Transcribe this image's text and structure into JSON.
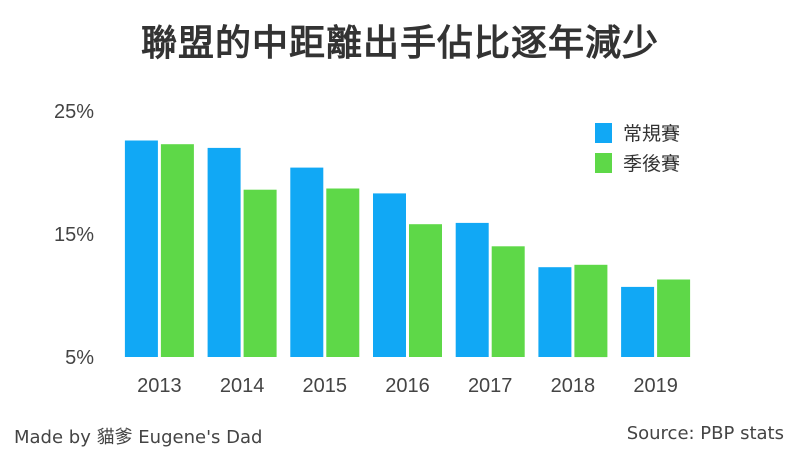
{
  "chart_data": {
    "type": "bar",
    "title": "聯盟的中距離出手佔比逐年減少",
    "categories": [
      "2013",
      "2014",
      "2015",
      "2016",
      "2017",
      "2018",
      "2019"
    ],
    "series": [
      {
        "name": "常規賽",
        "color": "#11A8F5",
        "values": [
          22.6,
          22.0,
          20.4,
          18.3,
          15.9,
          12.3,
          10.7
        ]
      },
      {
        "name": "季後賽",
        "color": "#5ED848",
        "values": [
          22.3,
          18.6,
          18.7,
          15.8,
          14.0,
          12.5,
          11.3
        ]
      }
    ],
    "ylim": [
      5,
      25
    ],
    "yticks": [
      "5%",
      "15%",
      "25%"
    ],
    "ytick_values": [
      5,
      15,
      25
    ],
    "legend_position": "top-right",
    "grid": false,
    "xlabel": "",
    "ylabel": ""
  },
  "footer": {
    "left": "Made by 貓爹 Eugene's Dad",
    "right": "Source: PBP stats"
  }
}
